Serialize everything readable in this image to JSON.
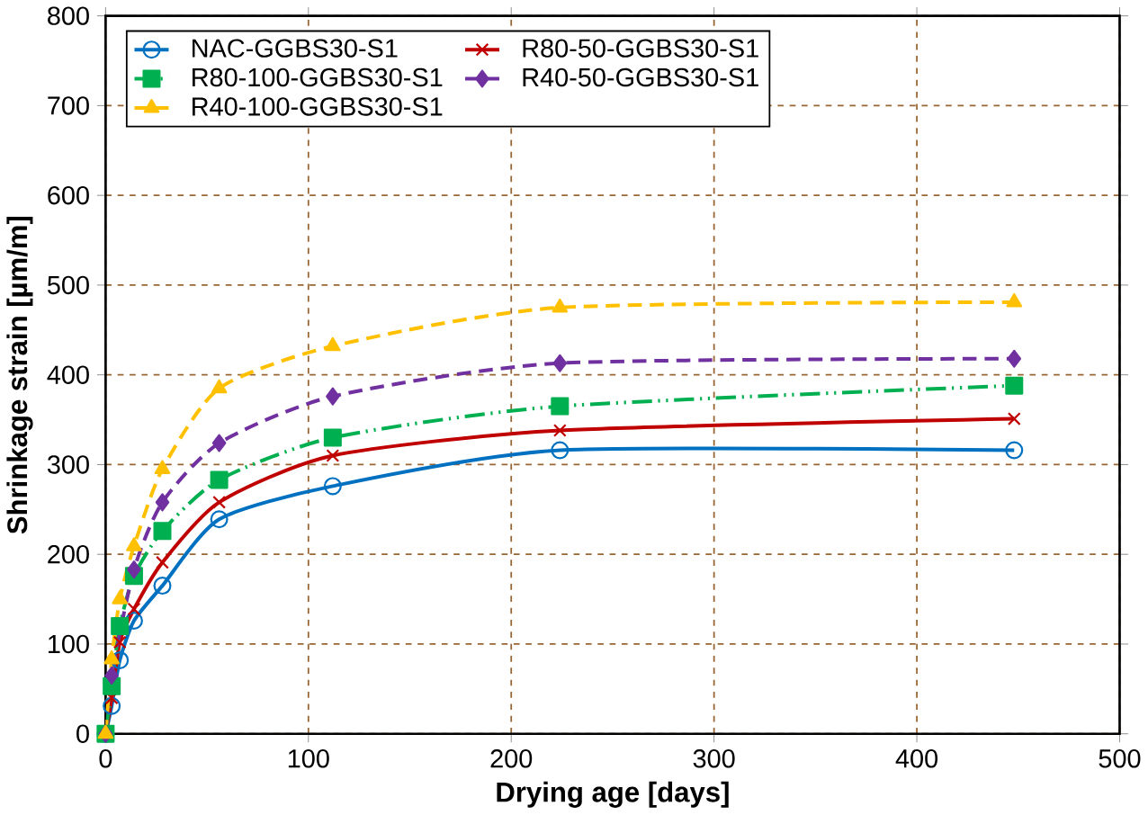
{
  "chart_data": {
    "type": "line",
    "xlabel": "Drying age [days]",
    "ylabel": "Shrinkage strain [µm/m]",
    "xlim": [
      0,
      500
    ],
    "ylim": [
      0,
      800
    ],
    "xticks": [
      0,
      100,
      200,
      300,
      400,
      500
    ],
    "yticks": [
      0,
      100,
      200,
      300,
      400,
      500,
      600,
      700,
      800
    ],
    "grid": true,
    "legend": "top left",
    "series": [
      {
        "name": "NAC-GGBS30-S1",
        "color": "#0070c0",
        "marker": "circle",
        "line_style": "solid",
        "x": [
          0,
          3,
          7,
          14,
          28,
          56,
          112,
          224,
          448
        ],
        "values": [
          0,
          31,
          82,
          126,
          165,
          239,
          276,
          316,
          316
        ]
      },
      {
        "name": "R80-50-GGBS30-S1",
        "color": "#c00000",
        "marker": "cross",
        "line_style": "solid",
        "x": [
          0,
          3,
          7,
          14,
          28,
          56,
          112,
          224,
          448
        ],
        "values": [
          0,
          40,
          102,
          139,
          191,
          258,
          310,
          338,
          351
        ]
      },
      {
        "name": "R80-100-GGBS30-S1",
        "color": "#00b050",
        "marker": "square",
        "line_style": "dashdotdot",
        "x": [
          0,
          3,
          7,
          14,
          28,
          56,
          112,
          224,
          448
        ],
        "values": [
          0,
          53,
          120,
          176,
          226,
          283,
          330,
          365,
          388
        ]
      },
      {
        "name": "R40-50-GGBS30-S1",
        "color": "#7030a0",
        "marker": "diamond",
        "line_style": "dashed",
        "x": [
          0,
          3,
          7,
          14,
          28,
          56,
          112,
          224,
          448
        ],
        "values": [
          0,
          65,
          null,
          183,
          258,
          324,
          376,
          413,
          418
        ]
      },
      {
        "name": "R40-100-GGBS30-S1",
        "color": "#ffc000",
        "marker": "triangle",
        "line_style": "dashed",
        "x": [
          0,
          3,
          7,
          14,
          28,
          56,
          112,
          224,
          448
        ],
        "values": [
          0,
          83,
          150,
          209,
          295,
          385,
          432,
          475,
          481
        ]
      }
    ]
  }
}
